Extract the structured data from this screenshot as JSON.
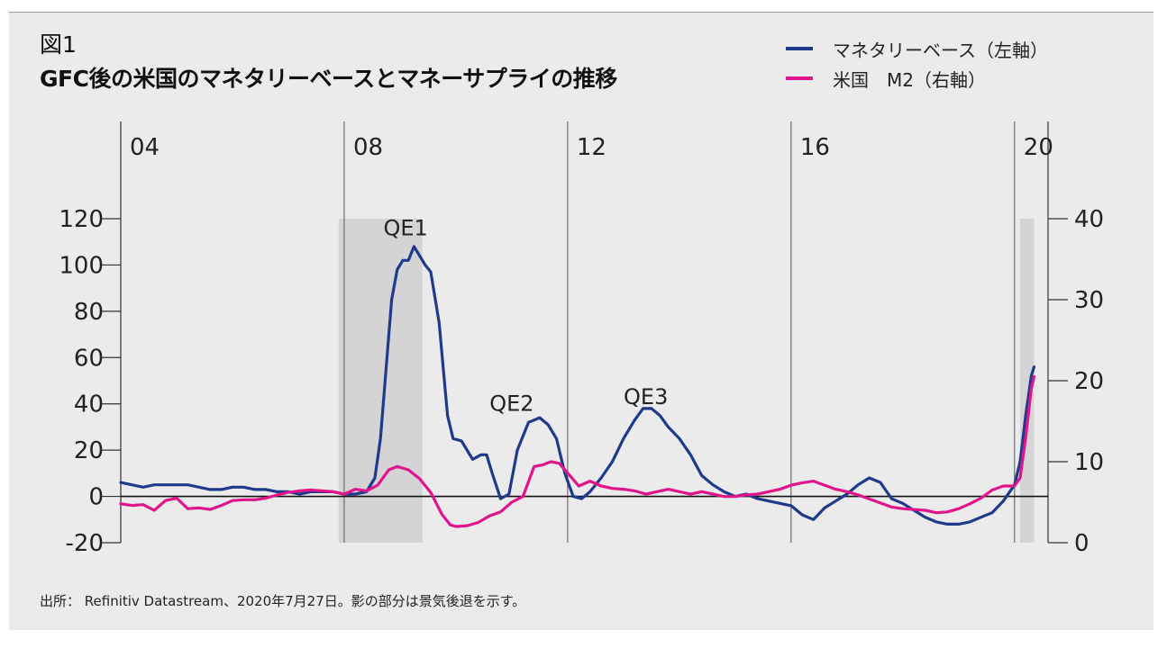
{
  "figure_label": "図1",
  "title": "GFC後の米国のマネタリーベースとマネーサプライの推移",
  "source": "出所： Refinitiv Datastream、2020年7月27日。影の部分は景気後退を示す。",
  "legend": [
    {
      "label": "マネタリーベース（左軸）",
      "color": "#1f3a8a"
    },
    {
      "label": "米国　M2（右軸）",
      "color": "#e0158c"
    }
  ],
  "chart_data": {
    "type": "line",
    "title": "GFC後の米国のマネタリーベースとマネーサプライの推移",
    "x_range": [
      2004.0,
      2020.6
    ],
    "year_labels": [
      "04",
      "08",
      "12",
      "16",
      "20"
    ],
    "year_values": [
      2004,
      2008,
      2012,
      2016,
      2020
    ],
    "left_axis": {
      "min": -20,
      "max": 120,
      "ticks": [
        "120",
        "100",
        "80",
        "60",
        "40",
        "20",
        "0",
        "-20"
      ],
      "tick_values": [
        120,
        100,
        80,
        60,
        40,
        20,
        0,
        -20
      ]
    },
    "right_axis": {
      "min": 0,
      "max": 40,
      "ticks": [
        "40",
        "30",
        "20",
        "10",
        "0"
      ],
      "tick_values": [
        40,
        30,
        20,
        10,
        0
      ]
    },
    "recessions": [
      [
        2007.9,
        2009.4
      ],
      [
        2020.1,
        2020.35
      ]
    ],
    "annotations": [
      {
        "text": "QE1",
        "x": 2009.1,
        "y": 116
      },
      {
        "text": "QE2",
        "x": 2011.0,
        "y": 40
      },
      {
        "text": "QE3",
        "x": 2013.4,
        "y": 43
      }
    ],
    "series": [
      {
        "name": "マネタリーベース（左軸）",
        "axis": "left",
        "color": "#1f3a8a",
        "x": [
          2004.0,
          2004.2,
          2004.4,
          2004.6,
          2004.8,
          2005.0,
          2005.2,
          2005.4,
          2005.6,
          2005.8,
          2006.0,
          2006.2,
          2006.4,
          2006.6,
          2006.8,
          2007.0,
          2007.2,
          2007.4,
          2007.6,
          2007.8,
          2008.0,
          2008.2,
          2008.4,
          2008.55,
          2008.65,
          2008.75,
          2008.85,
          2008.95,
          2009.05,
          2009.15,
          2009.25,
          2009.35,
          2009.45,
          2009.55,
          2009.7,
          2009.85,
          2009.95,
          2010.1,
          2010.3,
          2010.45,
          2010.55,
          2010.65,
          2010.8,
          2010.95,
          2011.1,
          2011.3,
          2011.5,
          2011.65,
          2011.8,
          2011.95,
          2012.1,
          2012.25,
          2012.4,
          2012.6,
          2012.8,
          2013.0,
          2013.2,
          2013.35,
          2013.5,
          2013.65,
          2013.8,
          2014.0,
          2014.2,
          2014.4,
          2014.6,
          2014.8,
          2015.0,
          2015.2,
          2015.4,
          2015.6,
          2015.8,
          2016.0,
          2016.2,
          2016.4,
          2016.6,
          2016.8,
          2017.0,
          2017.2,
          2017.4,
          2017.6,
          2017.8,
          2018.0,
          2018.2,
          2018.4,
          2018.6,
          2018.8,
          2019.0,
          2019.2,
          2019.4,
          2019.6,
          2019.8,
          2020.0,
          2020.1,
          2020.2,
          2020.3,
          2020.35
        ],
        "y": [
          6,
          5,
          4,
          5,
          5,
          5,
          5,
          4,
          3,
          3,
          4,
          4,
          3,
          3,
          2,
          2,
          1,
          2,
          2,
          2,
          1,
          1,
          2,
          8,
          25,
          55,
          85,
          98,
          102,
          102,
          108,
          104,
          100,
          97,
          75,
          35,
          25,
          24,
          16,
          18,
          18,
          10,
          -1,
          1,
          20,
          32,
          34,
          31,
          25,
          10,
          0,
          -1,
          2,
          8,
          15,
          25,
          33,
          38,
          38,
          35,
          30,
          25,
          18,
          9,
          5,
          2,
          0,
          1,
          -1,
          -2,
          -3,
          -4,
          -8,
          -10,
          -5,
          -2,
          1,
          5,
          8,
          6,
          -1,
          -3,
          -6,
          -9,
          -11,
          -12,
          -12,
          -11,
          -9,
          -7,
          -2,
          5,
          15,
          35,
          52,
          56
        ]
      },
      {
        "name": "米国　M2（右軸）",
        "axis": "right",
        "color": "#e0158c",
        "x": [
          2004.0,
          2004.2,
          2004.4,
          2004.6,
          2004.8,
          2005.0,
          2005.2,
          2005.4,
          2005.6,
          2005.8,
          2006.0,
          2006.2,
          2006.4,
          2006.6,
          2006.8,
          2007.0,
          2007.2,
          2007.4,
          2007.6,
          2007.8,
          2008.0,
          2008.2,
          2008.4,
          2008.6,
          2008.8,
          2008.95,
          2009.15,
          2009.35,
          2009.55,
          2009.75,
          2009.9,
          2010.0,
          2010.2,
          2010.4,
          2010.6,
          2010.8,
          2011.0,
          2011.2,
          2011.4,
          2011.55,
          2011.7,
          2011.85,
          2012.0,
          2012.2,
          2012.4,
          2012.6,
          2012.8,
          2013.0,
          2013.2,
          2013.4,
          2013.6,
          2013.8,
          2014.0,
          2014.2,
          2014.4,
          2014.6,
          2014.8,
          2015.0,
          2015.2,
          2015.4,
          2015.6,
          2015.8,
          2016.0,
          2016.2,
          2016.4,
          2016.6,
          2016.8,
          2017.0,
          2017.2,
          2017.4,
          2017.6,
          2017.8,
          2018.0,
          2018.2,
          2018.4,
          2018.6,
          2018.8,
          2019.0,
          2019.2,
          2019.4,
          2019.6,
          2019.8,
          2020.0,
          2020.1,
          2020.2,
          2020.3,
          2020.35
        ],
        "y": [
          4.8,
          4.6,
          4.7,
          4.0,
          5.2,
          5.5,
          4.2,
          4.3,
          4.1,
          4.6,
          5.2,
          5.3,
          5.3,
          5.5,
          5.9,
          6.2,
          6.4,
          6.5,
          6.4,
          6.3,
          6.0,
          6.6,
          6.4,
          7.1,
          9.0,
          9.4,
          9.0,
          7.9,
          6.2,
          3.5,
          2.2,
          2.0,
          2.1,
          2.5,
          3.3,
          3.8,
          5.0,
          5.7,
          9.4,
          9.6,
          10.0,
          9.8,
          8.6,
          7.0,
          7.6,
          7.0,
          6.7,
          6.6,
          6.4,
          6.0,
          6.3,
          6.6,
          6.3,
          6.0,
          6.3,
          6.0,
          5.7,
          5.7,
          5.9,
          6.0,
          6.3,
          6.6,
          7.1,
          7.4,
          7.6,
          7.1,
          6.6,
          6.3,
          5.9,
          5.4,
          4.9,
          4.4,
          4.2,
          4.1,
          4.0,
          3.7,
          3.8,
          4.2,
          4.8,
          5.5,
          6.5,
          7.0,
          7.0,
          8.0,
          13.0,
          19.0,
          20.5
        ]
      }
    ]
  }
}
